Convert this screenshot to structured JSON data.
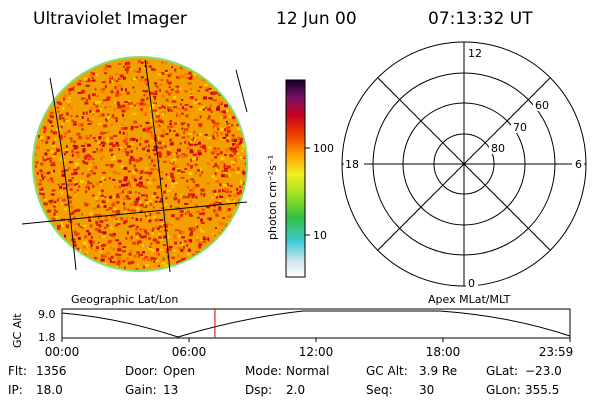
{
  "header": {
    "instrument": "Ultraviolet Imager",
    "date": "12 Jun 00",
    "time": "07:13:32 UT"
  },
  "colorbar": {
    "unit_label": "photon cm⁻²s⁻¹",
    "ticks": [
      "100",
      "10"
    ]
  },
  "polar_plot": {
    "mlt_labels": {
      "top": "12",
      "left": "18",
      "right": "6",
      "bottom": "0"
    },
    "mlat_labels": [
      "60",
      "70",
      "80"
    ],
    "caption": "Apex MLat/MLT"
  },
  "image_panel": {
    "caption": "Geographic Lat/Lon"
  },
  "timeline": {
    "y_label": "GC Alt",
    "y_ticks": [
      "9.0",
      "1.8"
    ],
    "x_ticks": [
      "00:00",
      "06:00",
      "12:00",
      "18:00",
      "23:59"
    ],
    "current_time_hours": 7.2253,
    "marker_color": "#cc0000"
  },
  "status": {
    "row1": [
      {
        "label": "Flt:",
        "value": "1356"
      },
      {
        "label": "Door:",
        "value": "Open"
      },
      {
        "label": "Mode:",
        "value": "Normal"
      },
      {
        "label": "GC Alt:",
        "value": "3.9 Re"
      },
      {
        "label": "GLat:",
        "value": "−23.0"
      }
    ],
    "row2": [
      {
        "label": "IP:",
        "value": "18.0"
      },
      {
        "label": "Gain:",
        "value": "13"
      },
      {
        "label": "Dsp:",
        "value": "2.0"
      },
      {
        "label": "Seq:",
        "value": "30"
      },
      {
        "label": "GLon:",
        "value": "355.5"
      }
    ]
  }
}
